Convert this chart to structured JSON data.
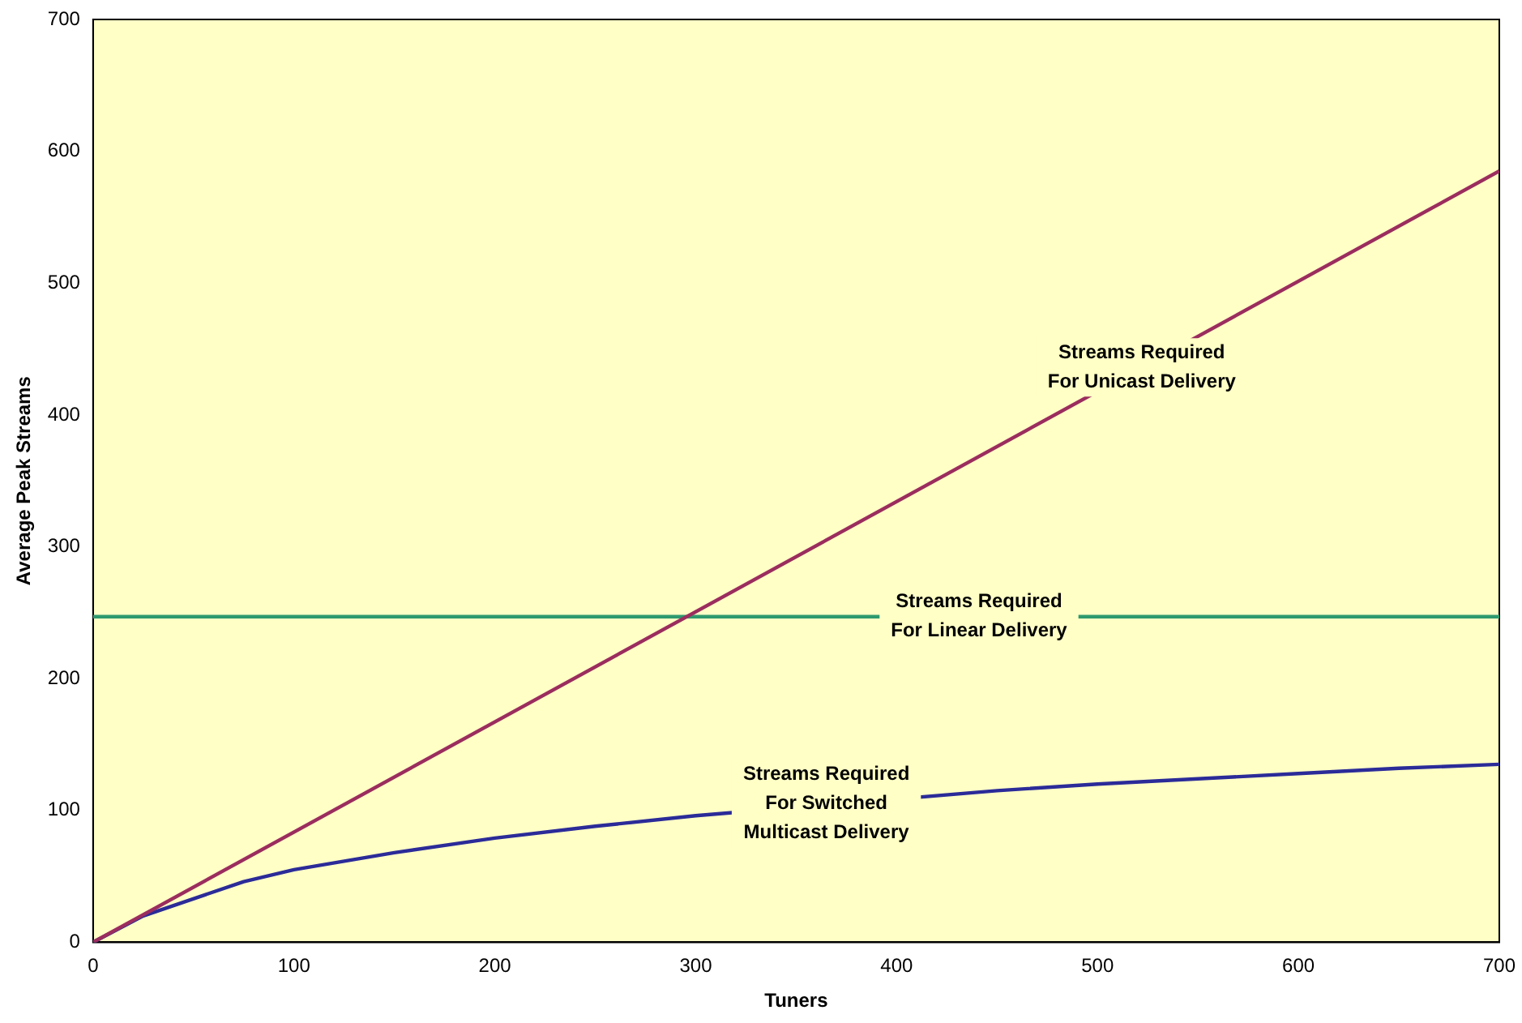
{
  "chart_data": {
    "type": "line",
    "xlabel": "Tuners",
    "ylabel": "Average Peak Streams",
    "xlim": [
      0,
      700
    ],
    "xticks": [
      0,
      100,
      200,
      300,
      400,
      500,
      600,
      700
    ],
    "ylim": [
      0,
      700
    ],
    "yticks": [
      0,
      100,
      200,
      300,
      400,
      500,
      600,
      700
    ],
    "grid": false,
    "legend": false,
    "marker": "none",
    "line_style": "solid",
    "series": [
      {
        "color": "#9b2d5e",
        "x": [
          0,
          700
        ],
        "values": [
          0,
          585
        ]
      },
      {
        "color": "#2b2b99",
        "x": [
          0,
          25,
          75,
          100,
          150,
          200,
          250,
          300,
          450,
          500,
          550,
          600,
          650,
          700
        ],
        "values": [
          0,
          20,
          46,
          55,
          68,
          79,
          88,
          96,
          115,
          120,
          124,
          128,
          132,
          135
        ]
      }
    ],
    "ref_lines": [
      {
        "axis": "y",
        "value": 247,
        "color": "#2e9a6e"
      }
    ],
    "annotations": [
      {
        "text": "Streams Required\nFor Unicast Delivery",
        "x": 522,
        "y": 436
      },
      {
        "text": "Streams Required\nFor Linear Delivery",
        "x": 441,
        "y": 247
      },
      {
        "text": "Streams Required\nFor Switched\nMulticast Delivery",
        "x": 365,
        "y": 105
      }
    ]
  }
}
